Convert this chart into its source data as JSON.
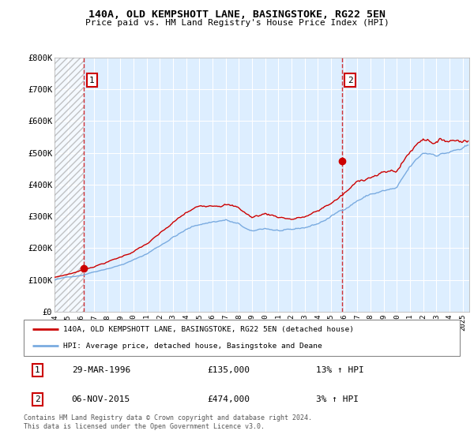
{
  "title1": "140A, OLD KEMPSHOTT LANE, BASINGSTOKE, RG22 5EN",
  "title2": "Price paid vs. HM Land Registry's House Price Index (HPI)",
  "yticks": [
    0,
    100000,
    200000,
    300000,
    400000,
    500000,
    600000,
    700000,
    800000
  ],
  "ytick_labels": [
    "£0",
    "£100K",
    "£200K",
    "£300K",
    "£400K",
    "£500K",
    "£600K",
    "£700K",
    "£800K"
  ],
  "xmin": 1994.0,
  "xmax": 2025.5,
  "ymin": 0,
  "ymax": 800000,
  "point1_x": 1996.24,
  "point1_y": 135000,
  "point1_label": "1",
  "point2_x": 2015.84,
  "point2_y": 474000,
  "point2_label": "2",
  "sale_color": "#cc0000",
  "hpi_color": "#7aabe0",
  "grid_color": "#cccccc",
  "bg_color": "#ddeeff",
  "dashed_line_color": "#cc0000",
  "legend_label1": "140A, OLD KEMPSHOTT LANE, BASINGSTOKE, RG22 5EN (detached house)",
  "legend_label2": "HPI: Average price, detached house, Basingstoke and Deane",
  "annotation1_date": "29-MAR-1996",
  "annotation1_price": "£135,000",
  "annotation1_hpi": "13% ↑ HPI",
  "annotation2_date": "06-NOV-2015",
  "annotation2_price": "£474,000",
  "annotation2_hpi": "3% ↑ HPI",
  "footnote": "Contains HM Land Registry data © Crown copyright and database right 2024.\nThis data is licensed under the Open Government Licence v3.0."
}
